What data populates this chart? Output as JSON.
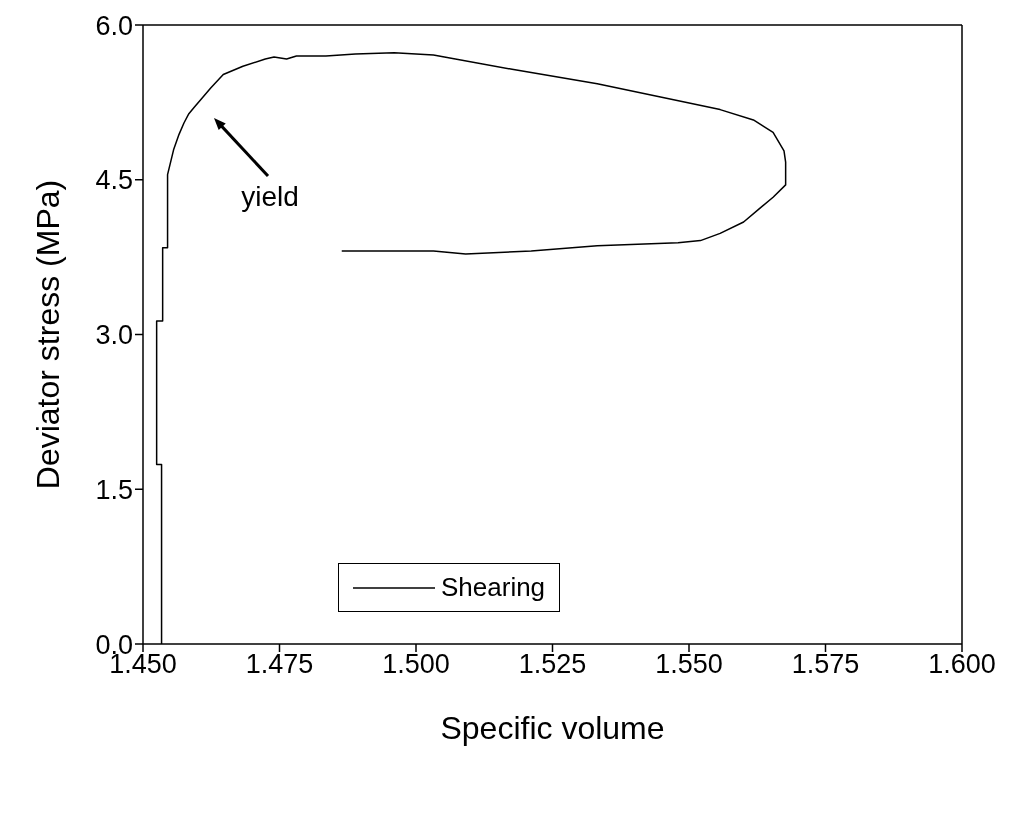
{
  "chart_data": {
    "type": "line",
    "xlabel": "Specific volume",
    "ylabel": "Deviator stress (MPa)",
    "xlim": [
      1.45,
      1.6
    ],
    "xticks": [
      {
        "value": 1.45,
        "label": "1.450"
      },
      {
        "value": 1.475,
        "label": "1.475"
      },
      {
        "value": 1.5,
        "label": "1.500"
      },
      {
        "value": 1.525,
        "label": "1.525"
      },
      {
        "value": 1.55,
        "label": "1.550"
      },
      {
        "value": 1.575,
        "label": "1.575"
      },
      {
        "value": 1.6,
        "label": "1.600"
      }
    ],
    "ylim": [
      0,
      6
    ],
    "yticks": [
      {
        "value": 0,
        "label": "0.0"
      },
      {
        "value": 1.5,
        "label": "1.5"
      },
      {
        "value": 3,
        "label": "3.0"
      },
      {
        "value": 4.5,
        "label": "4.5"
      },
      {
        "value": 6,
        "label": "6.0"
      }
    ],
    "grid": false,
    "legend": "bottom",
    "marker": "none",
    "line_style": "solid",
    "annotations": [
      "yield"
    ],
    "series": [
      {
        "name": "Shearing",
        "color": "#000000",
        "x": [
          1.4534,
          1.4534,
          1.4525,
          1.4525,
          1.4536,
          1.4536,
          1.4545,
          1.4545,
          1.4556,
          1.4566,
          1.4575,
          1.4584,
          1.4595,
          1.4608,
          1.4624,
          1.4647,
          1.4683,
          1.4724,
          1.474,
          1.4763,
          1.4781,
          1.4835,
          1.4889,
          1.496,
          1.5032,
          1.5176,
          1.5332,
          1.545,
          1.5557,
          1.5618,
          1.5654,
          1.5674,
          1.5677,
          1.5677,
          1.5654,
          1.5629,
          1.56,
          1.5557,
          1.5521,
          1.548,
          1.5332,
          1.5211,
          1.5091,
          1.5032,
          1.4864
        ],
        "values": [
          0,
          1.74,
          1.74,
          3.13,
          3.13,
          3.84,
          3.84,
          4.55,
          4.79,
          4.94,
          5.05,
          5.14,
          5.21,
          5.29,
          5.39,
          5.52,
          5.6,
          5.67,
          5.69,
          5.67,
          5.7,
          5.7,
          5.72,
          5.73,
          5.71,
          5.57,
          5.43,
          5.3,
          5.18,
          5.08,
          4.96,
          4.78,
          4.67,
          4.45,
          4.33,
          4.22,
          4.09,
          3.98,
          3.91,
          3.89,
          3.86,
          3.81,
          3.78,
          3.81,
          3.81
        ]
      }
    ]
  }
}
